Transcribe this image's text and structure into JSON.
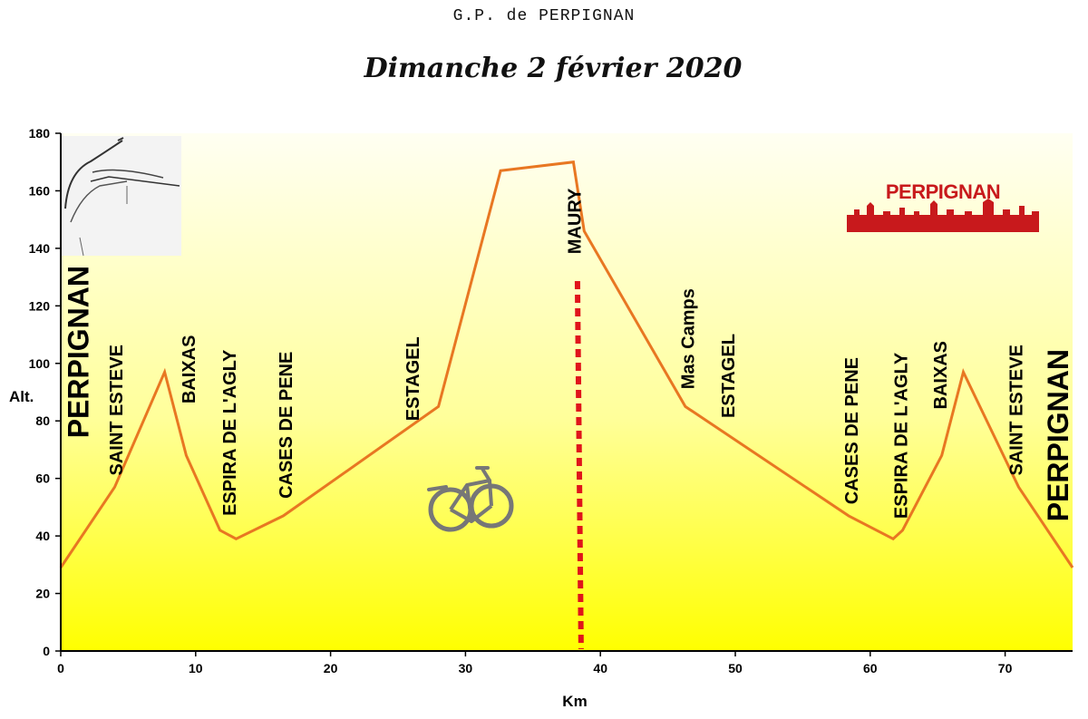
{
  "header": {
    "title": "G.P. de PERPIGNAN",
    "date": "Dimanche 2 février 2020"
  },
  "logo": {
    "text": "PERPIGNAN"
  },
  "colors": {
    "profile_line": "#e87722",
    "finish_marker": "#e0141b",
    "gradient_top": "#fffff0",
    "gradient_bottom": "#ffff00",
    "mas_camps_label": "#d8181a"
  },
  "icons": [
    "spectator-sketch-icon",
    "bicycle-icon",
    "perpignan-skyline-logo"
  ],
  "chart_data": {
    "type": "area",
    "xlabel": "Km",
    "ylabel": "Alt.",
    "xlim": [
      0,
      75
    ],
    "ylim": [
      0,
      180
    ],
    "x_ticks": [
      0,
      10,
      20,
      30,
      40,
      50,
      60,
      70
    ],
    "y_ticks": [
      0,
      20,
      40,
      60,
      80,
      100,
      120,
      140,
      160,
      180
    ],
    "grid": false,
    "series": [
      {
        "x": [
          0,
          4,
          7.7,
          9.3,
          11.8,
          13,
          16.5,
          28,
          32.6,
          38,
          38.8,
          46.3,
          58.4,
          61.7,
          62.4,
          65.3,
          66.9,
          71,
          75
        ],
        "y": [
          29,
          57,
          97,
          68,
          42,
          39,
          47,
          85,
          167,
          170,
          146,
          85,
          47,
          39,
          42,
          68,
          97,
          57,
          29
        ]
      }
    ],
    "finish_line_km": 38.3,
    "annotations": [
      {
        "text": "PERPIGNAN",
        "km": 1.5,
        "alt": 74,
        "big": true
      },
      {
        "text": "SAINT ESTEVE",
        "km": 4.2,
        "alt": 61,
        "big": false
      },
      {
        "text": "BAIXAS",
        "km": 9.6,
        "alt": 86,
        "big": false
      },
      {
        "text": "ESPIRA DE L'AGLY",
        "km": 12.6,
        "alt": 47,
        "big": false
      },
      {
        "text": "CASES DE PENE",
        "km": 16.8,
        "alt": 53,
        "big": false
      },
      {
        "text": "ESTAGEL",
        "km": 26.2,
        "alt": 80,
        "big": false
      },
      {
        "text": "MAURY",
        "km": 38.2,
        "alt": 138,
        "big": false
      },
      {
        "text": "Mas Camps",
        "km": 46.6,
        "alt": 91,
        "big": false,
        "red": true
      },
      {
        "text": "ESTAGEL",
        "km": 49.6,
        "alt": 81,
        "big": false
      },
      {
        "text": "CASES DE PENE",
        "km": 58.7,
        "alt": 51,
        "big": false
      },
      {
        "text": "ESPIRA DE L'AGLY",
        "km": 62.4,
        "alt": 46,
        "big": false
      },
      {
        "text": "BAIXAS",
        "km": 65.3,
        "alt": 84,
        "big": false
      },
      {
        "text": "SAINT ESTEVE",
        "km": 70.9,
        "alt": 61,
        "big": false
      },
      {
        "text": "PERPIGNAN",
        "km": 74.1,
        "alt": 45,
        "big": true
      }
    ]
  }
}
